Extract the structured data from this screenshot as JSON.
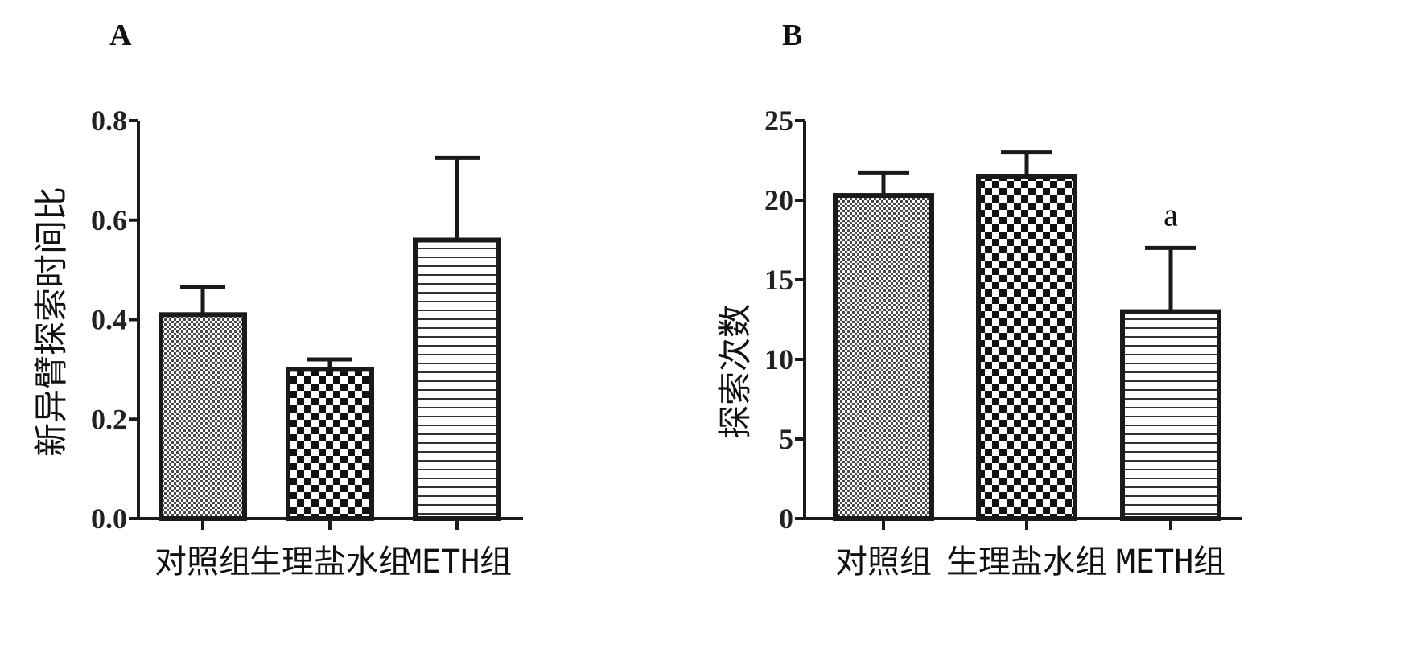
{
  "chart_data": [
    {
      "panel": "A",
      "type": "bar",
      "ylabel": "新异臂探索时间比",
      "ylim": [
        0,
        0.8
      ],
      "yticks": [
        0.0,
        0.2,
        0.4,
        0.6,
        0.8
      ],
      "ytick_labels": [
        "0.0",
        "0.2",
        "0.4",
        "0.6",
        "0.8"
      ],
      "categories": [
        "对照组",
        "生理盐水组",
        "METH组"
      ],
      "values": [
        0.41,
        0.3,
        0.56
      ],
      "error_upper": [
        0.465,
        0.32,
        0.725
      ],
      "patterns": [
        "fine-dots",
        "checker",
        "horizontal-lines"
      ],
      "annotations": [
        "",
        "",
        ""
      ],
      "grid": false
    },
    {
      "panel": "B",
      "type": "bar",
      "ylabel": "探索次数",
      "ylim": [
        0,
        25
      ],
      "yticks": [
        0,
        5,
        10,
        15,
        20,
        25
      ],
      "ytick_labels": [
        "0",
        "5",
        "10",
        "15",
        "20",
        "25"
      ],
      "categories": [
        "对照组",
        "生理盐水组",
        "METH组"
      ],
      "values": [
        20.3,
        21.5,
        13.0
      ],
      "error_upper": [
        21.7,
        23.0,
        17.0
      ],
      "patterns": [
        "fine-dots",
        "checker",
        "horizontal-lines"
      ],
      "annotations": [
        "",
        "",
        "a"
      ],
      "grid": false
    }
  ]
}
